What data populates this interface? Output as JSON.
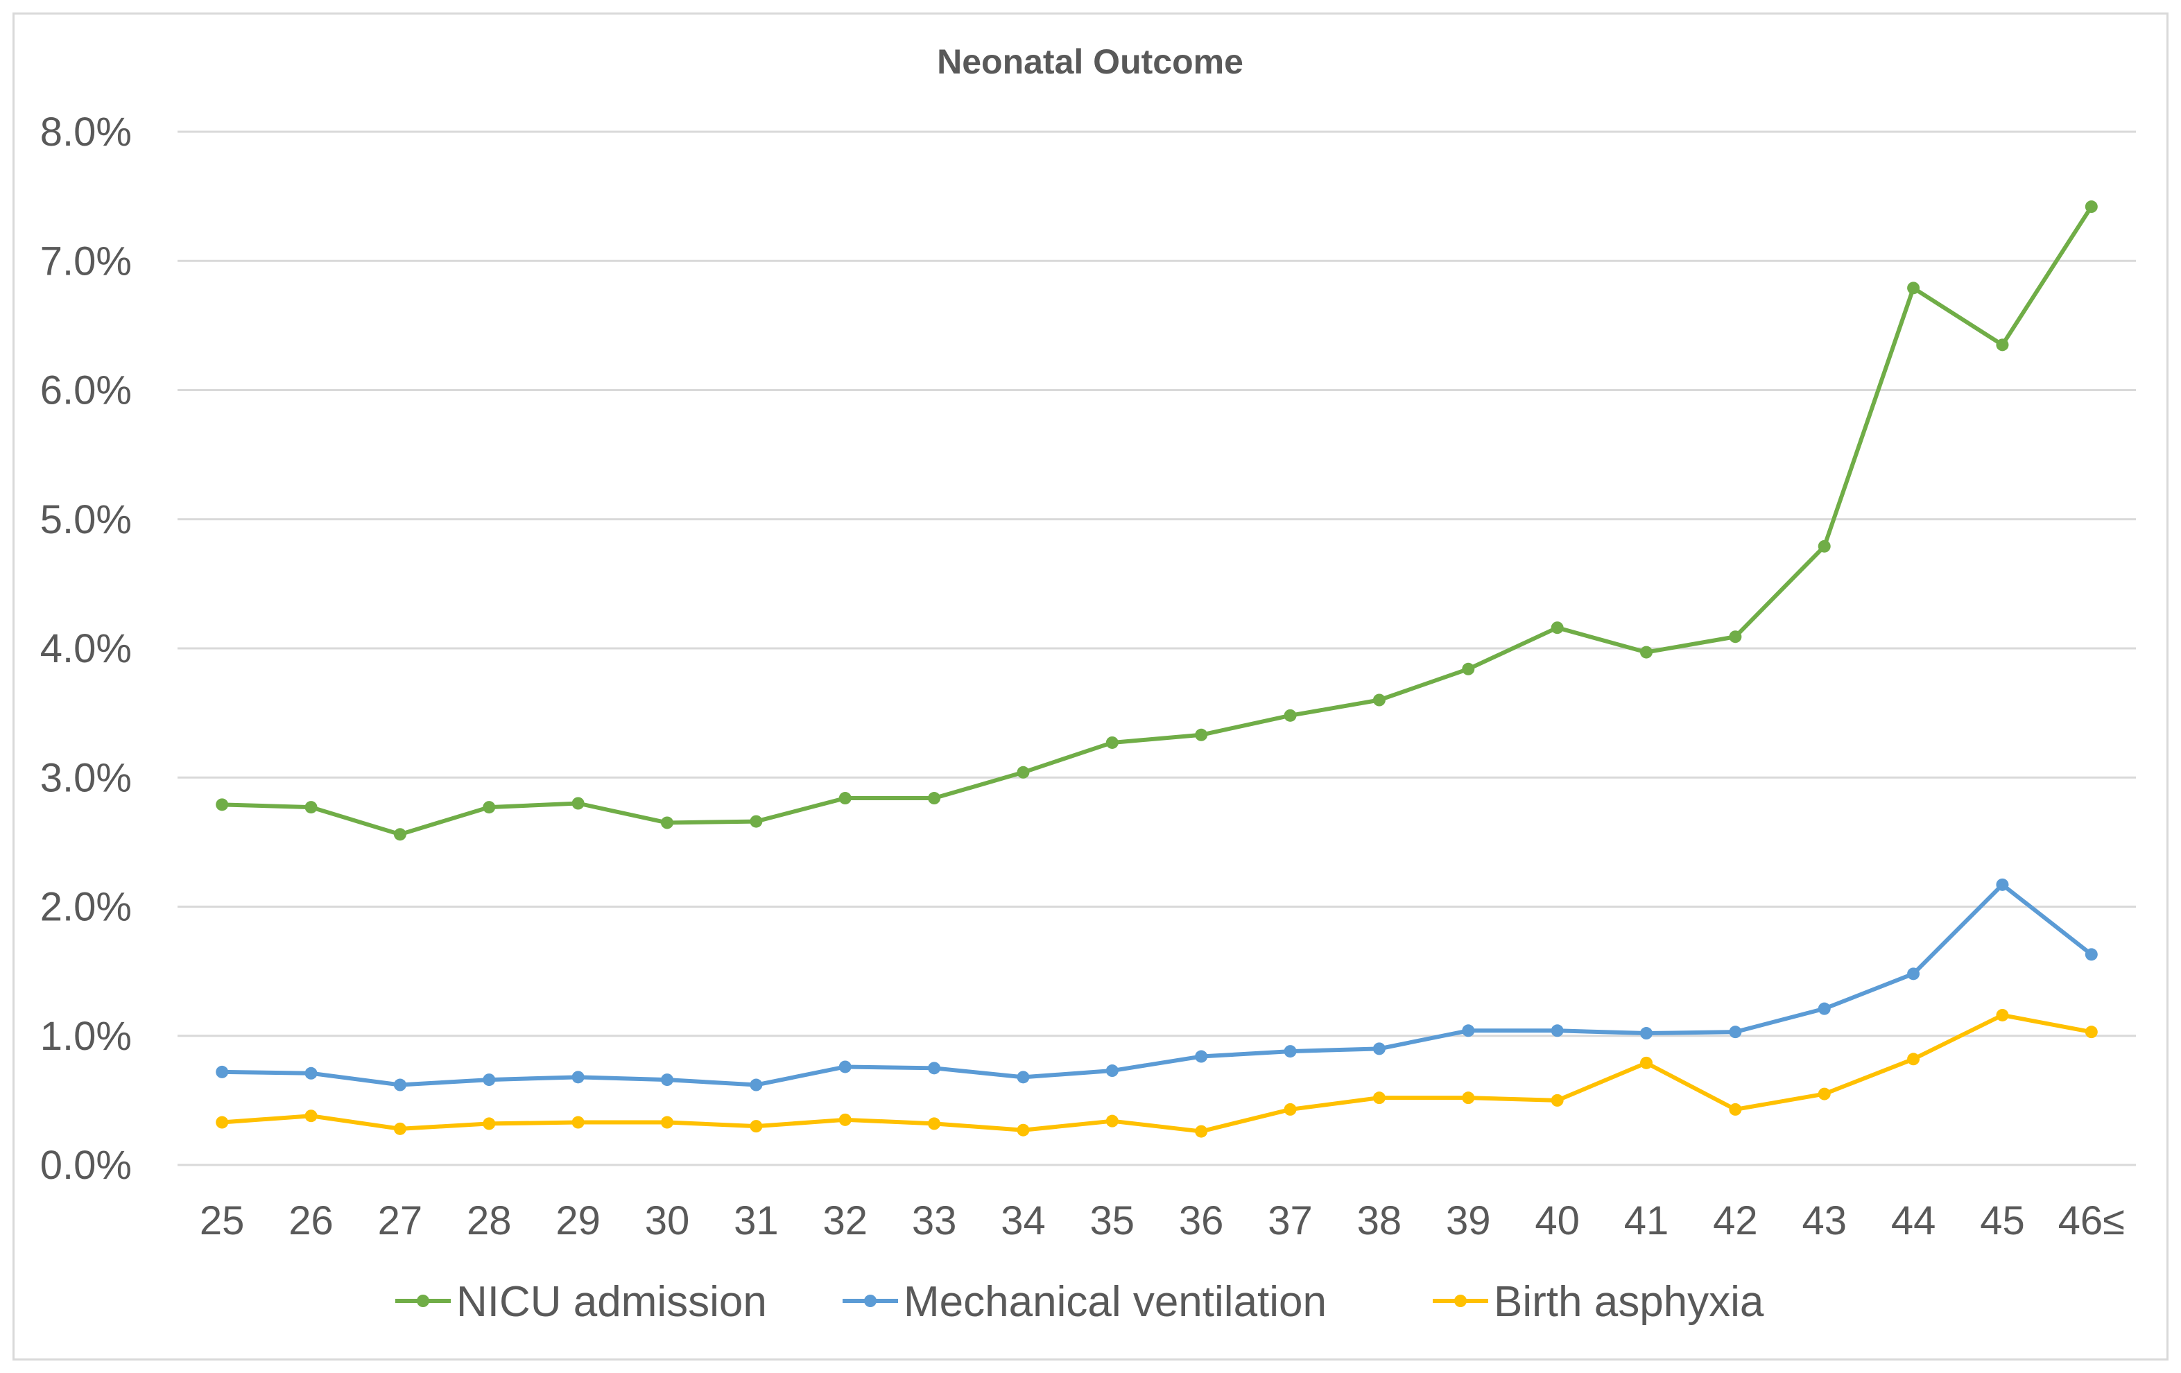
{
  "chart_data": {
    "type": "line",
    "title": "Neonatal Outcome",
    "xlabel": "",
    "ylabel": "",
    "categories": [
      "25",
      "26",
      "27",
      "28",
      "29",
      "30",
      "31",
      "32",
      "33",
      "34",
      "35",
      "36",
      "37",
      "38",
      "39",
      "40",
      "41",
      "42",
      "43",
      "44",
      "45",
      "46≤"
    ],
    "y_ticks": [
      "0.0%",
      "1.0%",
      "2.0%",
      "3.0%",
      "4.0%",
      "5.0%",
      "6.0%",
      "7.0%",
      "8.0%"
    ],
    "ylim": [
      0,
      8
    ],
    "grid": true,
    "legend_position": "bottom",
    "series": [
      {
        "name": "NICU admission",
        "color": "#70ad47",
        "values": [
          2.79,
          2.77,
          2.56,
          2.77,
          2.8,
          2.65,
          2.66,
          2.84,
          2.84,
          3.04,
          3.27,
          3.33,
          3.48,
          3.6,
          3.84,
          4.16,
          3.97,
          4.09,
          4.79,
          6.79,
          6.35,
          7.42
        ]
      },
      {
        "name": "Mechanical ventilation",
        "color": "#5b9bd5",
        "values": [
          0.72,
          0.71,
          0.62,
          0.66,
          0.68,
          0.66,
          0.62,
          0.76,
          0.75,
          0.68,
          0.73,
          0.84,
          0.88,
          0.9,
          1.04,
          1.04,
          1.02,
          1.03,
          1.21,
          1.48,
          2.17,
          1.63
        ]
      },
      {
        "name": "Birth asphyxia",
        "color": "#ffc000",
        "values": [
          0.33,
          0.38,
          0.28,
          0.32,
          0.33,
          0.33,
          0.3,
          0.35,
          0.32,
          0.27,
          0.34,
          0.26,
          0.43,
          0.52,
          0.52,
          0.5,
          0.79,
          0.43,
          0.55,
          0.82,
          1.16,
          1.03
        ]
      }
    ]
  }
}
